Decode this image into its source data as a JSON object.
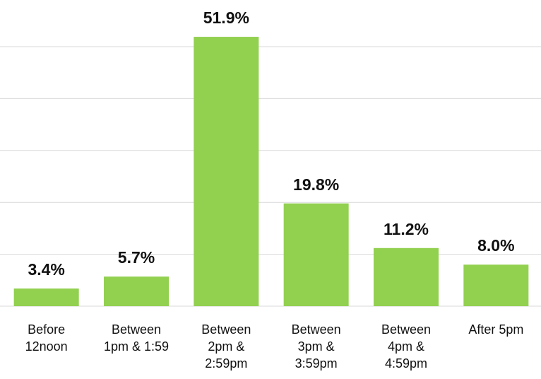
{
  "chart_data": {
    "type": "bar",
    "categories": [
      "Before\n12noon",
      "Between\n1pm & 1:59",
      "Between\n2pm &\n2:59pm",
      "Between\n3pm &\n3:59pm",
      "Between\n4pm &\n4:59pm",
      "After 5pm"
    ],
    "values": [
      3.4,
      5.7,
      51.9,
      19.8,
      11.2,
      8.0
    ],
    "value_labels": [
      "3.4%",
      "5.7%",
      "51.9%",
      "19.8%",
      "11.2%",
      "8.0%"
    ],
    "color": "#92d050",
    "ylim": [
      0,
      50
    ],
    "yticks": [
      0,
      10,
      20,
      30,
      40,
      50
    ],
    "grid": true
  }
}
